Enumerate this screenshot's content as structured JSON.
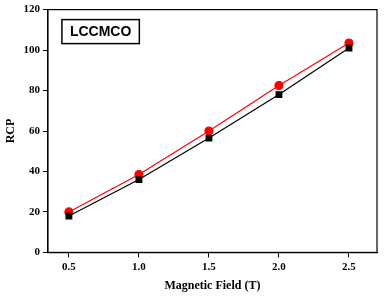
{
  "chart_data": {
    "type": "line",
    "title": "LCCMCO",
    "x_label": "Magnetic Field (T)",
    "y_label": "RCP",
    "x": [
      0.5,
      1.0,
      1.5,
      2.0,
      2.5
    ],
    "series": [
      {
        "color": "#000000",
        "marker": "square",
        "values": [
          18,
          36,
          56.5,
          78,
          101
        ]
      },
      {
        "color": "#ff0000",
        "marker": "circle",
        "values": [
          20,
          38.5,
          60,
          82.5,
          103.5
        ]
      }
    ],
    "xlim": [
      0.35,
      2.7
    ],
    "xticks": [
      {
        "value": 0.5,
        "label": "0.5"
      },
      {
        "value": 1,
        "label": "1.0"
      },
      {
        "value": 1.5,
        "label": "1.5"
      },
      {
        "value": 2,
        "label": "2.0"
      },
      {
        "value": 2.5,
        "label": "2.5"
      }
    ],
    "ylim": [
      0,
      120
    ],
    "yticks": [
      0,
      20,
      40,
      60,
      80,
      100,
      120
    ],
    "grid": false
  }
}
